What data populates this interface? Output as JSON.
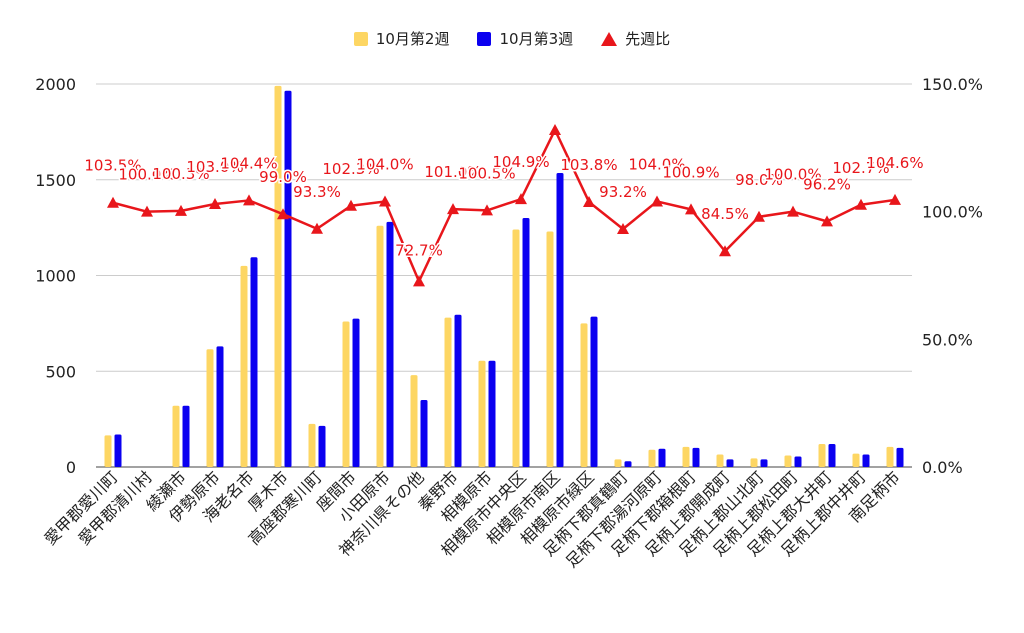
{
  "chart_data": {
    "type": "bar",
    "categories": [
      "愛甲郡愛川町",
      "愛甲郡清川村",
      "綾瀬市",
      "伊勢原市",
      "海老名市",
      "厚木市",
      "高座郡寒川町",
      "座間市",
      "小田原市",
      "神奈川県その他",
      "秦野市",
      "相模原市",
      "相模原市中央区",
      "相模原市南区",
      "相模原市緑区",
      "足柄下郡真鶴町",
      "足柄下郡湯河原町",
      "足柄下郡箱根町",
      "足柄上郡開成町",
      "足柄上郡山北町",
      "足柄上郡松田町",
      "足柄上郡大井町",
      "足柄上郡中井町",
      "南足柄市"
    ],
    "series": [
      {
        "name": "10月第2週",
        "color": "#fdd663",
        "values": [
          165,
          0,
          320,
          615,
          1050,
          1990,
          225,
          760,
          1260,
          480,
          780,
          555,
          1240,
          1230,
          750,
          40,
          90,
          105,
          65,
          45,
          60,
          120,
          70,
          105
        ]
      },
      {
        "name": "10月第3週",
        "color": "#0b00f0",
        "values": [
          170,
          0,
          320,
          630,
          1095,
          1965,
          215,
          775,
          1280,
          350,
          795,
          555,
          1300,
          1535,
          785,
          30,
          95,
          100,
          40,
          40,
          55,
          120,
          65,
          100
        ]
      },
      {
        "name": "先週比",
        "color": "#e8161b",
        "axis": "right",
        "values": [
          103.5,
          100.0,
          100.3,
          103.0,
          104.4,
          99.0,
          93.3,
          102.3,
          104.0,
          72.7,
          101.0,
          100.5,
          104.9,
          132.0,
          103.8,
          93.2,
          104.0,
          100.9,
          84.5,
          98.0,
          100.0,
          96.2,
          102.7,
          104.6
        ],
        "labels": [
          "103.5%",
          "100.0%",
          "100.3%",
          "103.0%",
          "104.4%",
          "99.0%",
          "93.3%",
          "102.3%",
          "104.0%",
          "72.7%",
          "101.0%",
          "100.5%",
          "104.9%",
          "",
          "103.8%",
          "93.2%",
          "104.0%",
          "100.9%",
          "84.5%",
          "98.0%",
          "100.0%",
          "96.2%",
          "102.7%",
          "104.6%"
        ]
      }
    ],
    "y_left": {
      "min": 0,
      "max": 2000,
      "ticks": [
        "0",
        "500",
        "1000",
        "1500",
        "2000"
      ]
    },
    "y_right": {
      "min": 0,
      "max": 150,
      "ticks": [
        "0.0%",
        "50.0%",
        "100.0%",
        "150.0%"
      ]
    },
    "grid": true,
    "legend_position": "top"
  }
}
